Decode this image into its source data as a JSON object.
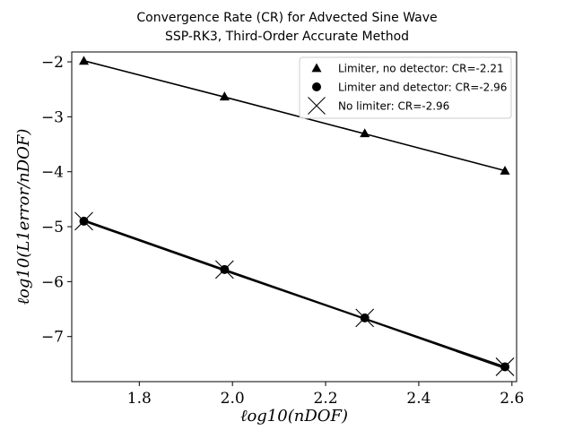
{
  "chart_data": {
    "type": "line",
    "title": "Convergence Rate (CR) for Advected Sine Wave",
    "subtitle": "SSP-RK3, Third-Order Accurate Method",
    "xlabel": "ℓog10(nDOF)",
    "ylabel": "ℓog10(L1error/nDOF)",
    "xlim": [
      1.655,
      2.61
    ],
    "ylim": [
      -7.82,
      -1.82
    ],
    "xticks": [
      1.8,
      2.0,
      2.2,
      2.4,
      2.6
    ],
    "yticks": [
      -2,
      -3,
      -4,
      -5,
      -6,
      -7
    ],
    "xtick_labels": [
      "1.8",
      "2.0",
      "2.2",
      "2.4",
      "2.6"
    ],
    "ytick_labels": [
      "−2",
      "−3",
      "−4",
      "−5",
      "−6",
      "−7"
    ],
    "grid": false,
    "legend_position": "top-right",
    "x": [
      1.681,
      1.983,
      2.284,
      2.585
    ],
    "series": [
      {
        "name": "Limiter, no detector: CR=-2.21",
        "marker": "triangle",
        "points_y": [
          -1.98,
          -2.63,
          -3.3,
          -3.98
        ],
        "fit_y": [
          -1.98,
          -2.64,
          -3.31,
          -3.98
        ]
      },
      {
        "name": "Limiter and detector: CR=-2.96",
        "marker": "circle",
        "points_y": [
          -4.9,
          -5.78,
          -6.66,
          -7.55
        ],
        "fit_y": [
          -4.88,
          -5.78,
          -6.67,
          -7.55
        ]
      },
      {
        "name": "No limiter: CR=-2.96",
        "marker": "x",
        "points_y": [
          -4.9,
          -5.78,
          -6.66,
          -7.55
        ],
        "fit_y": [
          -4.9,
          -5.8,
          -6.68,
          -7.58
        ]
      }
    ],
    "colors": {
      "line": "#000000",
      "marker": "#000000",
      "axes": "#000000"
    }
  }
}
